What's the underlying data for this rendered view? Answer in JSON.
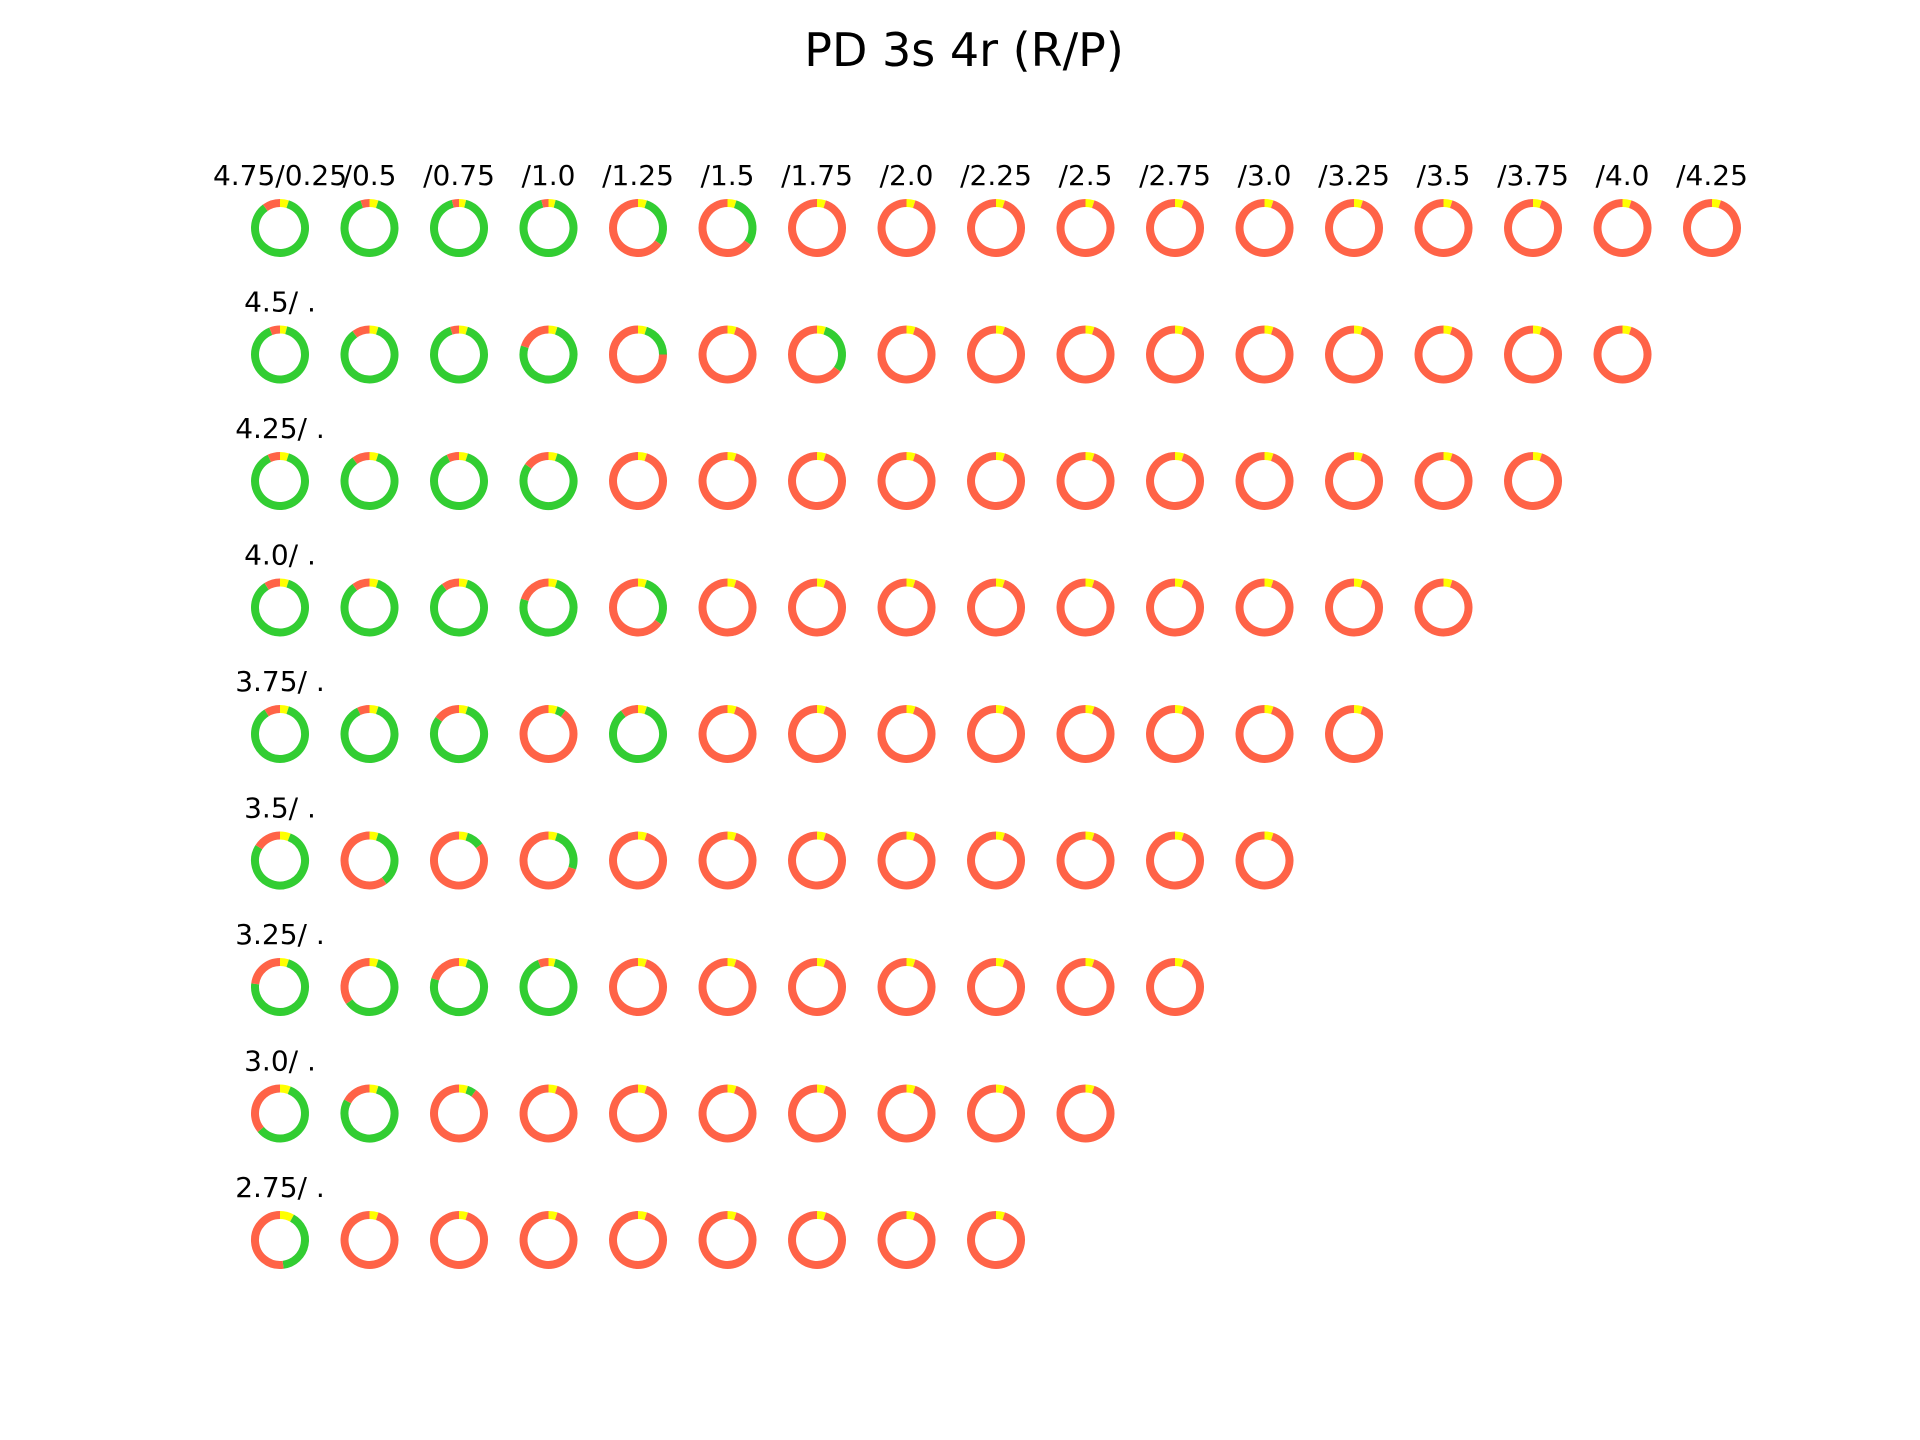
{
  "title": "PD 3s 4r (R/P)",
  "colors": {
    "green": "#32cd32",
    "red": "#ff6347",
    "yellow": "#ffff00",
    "background": "#ffffff"
  },
  "chart_data": {
    "type": "donut-grid",
    "title": "PD 3s 4r (R/P)",
    "series": [
      {
        "name": "green",
        "color": "#32cd32"
      },
      {
        "name": "yellow",
        "color": "#ffff00"
      },
      {
        "name": "red",
        "color": "#ff6347"
      }
    ],
    "rows": [
      {
        "label": "4.75/0.25",
        "cells": [
          {
            "label": "4.75/0.25",
            "green": 0.85,
            "yellow": 0.05,
            "red": 0.1
          },
          {
            "label": "/0.5",
            "green": 0.9,
            "yellow": 0.05,
            "red": 0.05
          },
          {
            "label": "/0.75",
            "green": 0.92,
            "yellow": 0.04,
            "red": 0.04
          },
          {
            "label": "/1.0",
            "green": 0.92,
            "yellow": 0.04,
            "red": 0.04
          },
          {
            "label": "/1.25",
            "green": 0.3,
            "yellow": 0.05,
            "red": 0.65
          },
          {
            "label": "/1.5",
            "green": 0.3,
            "yellow": 0.05,
            "red": 0.65
          },
          {
            "label": "/1.75",
            "green": 0.0,
            "yellow": 0.05,
            "red": 0.95
          },
          {
            "label": "/2.0",
            "green": 0.0,
            "yellow": 0.05,
            "red": 0.95
          },
          {
            "label": "/2.25",
            "green": 0.0,
            "yellow": 0.05,
            "red": 0.95
          },
          {
            "label": "/2.5",
            "green": 0.0,
            "yellow": 0.05,
            "red": 0.95
          },
          {
            "label": "/2.75",
            "green": 0.0,
            "yellow": 0.05,
            "red": 0.95
          },
          {
            "label": "/3.0",
            "green": 0.0,
            "yellow": 0.05,
            "red": 0.95
          },
          {
            "label": "/3.25",
            "green": 0.0,
            "yellow": 0.05,
            "red": 0.95
          },
          {
            "label": "/3.5",
            "green": 0.0,
            "yellow": 0.05,
            "red": 0.95
          },
          {
            "label": "/3.75",
            "green": 0.0,
            "yellow": 0.05,
            "red": 0.95
          },
          {
            "label": "/4.0",
            "green": 0.0,
            "yellow": 0.05,
            "red": 0.95
          },
          {
            "label": "/4.25",
            "green": 0.0,
            "yellow": 0.05,
            "red": 0.95
          }
        ]
      },
      {
        "label": "4.5/ .",
        "cells": [
          {
            "green": 0.9,
            "yellow": 0.04,
            "red": 0.06
          },
          {
            "green": 0.85,
            "yellow": 0.05,
            "red": 0.1
          },
          {
            "green": 0.9,
            "yellow": 0.05,
            "red": 0.05
          },
          {
            "green": 0.75,
            "yellow": 0.05,
            "red": 0.2
          },
          {
            "green": 0.2,
            "yellow": 0.05,
            "red": 0.75
          },
          {
            "green": 0.0,
            "yellow": 0.05,
            "red": 0.95
          },
          {
            "green": 0.3,
            "yellow": 0.05,
            "red": 0.65
          },
          {
            "green": 0.0,
            "yellow": 0.05,
            "red": 0.95
          },
          {
            "green": 0.0,
            "yellow": 0.05,
            "red": 0.95
          },
          {
            "green": 0.0,
            "yellow": 0.05,
            "red": 0.95
          },
          {
            "green": 0.0,
            "yellow": 0.05,
            "red": 0.95
          },
          {
            "green": 0.0,
            "yellow": 0.05,
            "red": 0.95
          },
          {
            "green": 0.0,
            "yellow": 0.05,
            "red": 0.95
          },
          {
            "green": 0.0,
            "yellow": 0.05,
            "red": 0.95
          },
          {
            "green": 0.0,
            "yellow": 0.05,
            "red": 0.95
          },
          {
            "green": 0.0,
            "yellow": 0.05,
            "red": 0.95
          }
        ]
      },
      {
        "label": "4.25/ .",
        "cells": [
          {
            "green": 0.88,
            "yellow": 0.05,
            "red": 0.07
          },
          {
            "green": 0.85,
            "yellow": 0.05,
            "red": 0.1
          },
          {
            "green": 0.88,
            "yellow": 0.05,
            "red": 0.07
          },
          {
            "green": 0.8,
            "yellow": 0.05,
            "red": 0.15
          },
          {
            "green": 0.0,
            "yellow": 0.05,
            "red": 0.95
          },
          {
            "green": 0.0,
            "yellow": 0.05,
            "red": 0.95
          },
          {
            "green": 0.0,
            "yellow": 0.05,
            "red": 0.95
          },
          {
            "green": 0.0,
            "yellow": 0.05,
            "red": 0.95
          },
          {
            "green": 0.0,
            "yellow": 0.05,
            "red": 0.95
          },
          {
            "green": 0.0,
            "yellow": 0.05,
            "red": 0.95
          },
          {
            "green": 0.0,
            "yellow": 0.05,
            "red": 0.95
          },
          {
            "green": 0.0,
            "yellow": 0.05,
            "red": 0.95
          },
          {
            "green": 0.0,
            "yellow": 0.05,
            "red": 0.95
          },
          {
            "green": 0.0,
            "yellow": 0.05,
            "red": 0.95
          },
          {
            "green": 0.0,
            "yellow": 0.05,
            "red": 0.95
          }
        ]
      },
      {
        "label": "4.0/ .",
        "cells": [
          {
            "green": 0.86,
            "yellow": 0.05,
            "red": 0.09
          },
          {
            "green": 0.85,
            "yellow": 0.05,
            "red": 0.1
          },
          {
            "green": 0.85,
            "yellow": 0.05,
            "red": 0.1
          },
          {
            "green": 0.75,
            "yellow": 0.05,
            "red": 0.2
          },
          {
            "green": 0.3,
            "yellow": 0.05,
            "red": 0.65
          },
          {
            "green": 0.0,
            "yellow": 0.05,
            "red": 0.95
          },
          {
            "green": 0.0,
            "yellow": 0.05,
            "red": 0.95
          },
          {
            "green": 0.0,
            "yellow": 0.05,
            "red": 0.95
          },
          {
            "green": 0.0,
            "yellow": 0.05,
            "red": 0.95
          },
          {
            "green": 0.0,
            "yellow": 0.05,
            "red": 0.95
          },
          {
            "green": 0.0,
            "yellow": 0.05,
            "red": 0.95
          },
          {
            "green": 0.0,
            "yellow": 0.05,
            "red": 0.95
          },
          {
            "green": 0.0,
            "yellow": 0.05,
            "red": 0.95
          },
          {
            "green": 0.0,
            "yellow": 0.05,
            "red": 0.95
          }
        ]
      },
      {
        "label": "3.75/ .",
        "cells": [
          {
            "green": 0.86,
            "yellow": 0.05,
            "red": 0.09
          },
          {
            "green": 0.88,
            "yellow": 0.05,
            "red": 0.07
          },
          {
            "green": 0.8,
            "yellow": 0.05,
            "red": 0.15
          },
          {
            "green": 0.05,
            "yellow": 0.05,
            "red": 0.9
          },
          {
            "green": 0.85,
            "yellow": 0.05,
            "red": 0.1
          },
          {
            "green": 0.0,
            "yellow": 0.05,
            "red": 0.95
          },
          {
            "green": 0.0,
            "yellow": 0.05,
            "red": 0.95
          },
          {
            "green": 0.0,
            "yellow": 0.05,
            "red": 0.95
          },
          {
            "green": 0.0,
            "yellow": 0.05,
            "red": 0.95
          },
          {
            "green": 0.0,
            "yellow": 0.05,
            "red": 0.95
          },
          {
            "green": 0.0,
            "yellow": 0.05,
            "red": 0.95
          },
          {
            "green": 0.0,
            "yellow": 0.05,
            "red": 0.95
          },
          {
            "green": 0.0,
            "yellow": 0.05,
            "red": 0.95
          }
        ]
      },
      {
        "label": "3.5/ .",
        "cells": [
          {
            "green": 0.78,
            "yellow": 0.06,
            "red": 0.16
          },
          {
            "green": 0.35,
            "yellow": 0.05,
            "red": 0.6
          },
          {
            "green": 0.1,
            "yellow": 0.05,
            "red": 0.85
          },
          {
            "green": 0.25,
            "yellow": 0.05,
            "red": 0.7
          },
          {
            "green": 0.0,
            "yellow": 0.05,
            "red": 0.95
          },
          {
            "green": 0.0,
            "yellow": 0.05,
            "red": 0.95
          },
          {
            "green": 0.0,
            "yellow": 0.05,
            "red": 0.95
          },
          {
            "green": 0.0,
            "yellow": 0.05,
            "red": 0.95
          },
          {
            "green": 0.0,
            "yellow": 0.05,
            "red": 0.95
          },
          {
            "green": 0.0,
            "yellow": 0.05,
            "red": 0.95
          },
          {
            "green": 0.0,
            "yellow": 0.05,
            "red": 0.95
          },
          {
            "green": 0.0,
            "yellow": 0.05,
            "red": 0.95
          }
        ]
      },
      {
        "label": "3.25/ .",
        "cells": [
          {
            "green": 0.72,
            "yellow": 0.05,
            "red": 0.23
          },
          {
            "green": 0.6,
            "yellow": 0.05,
            "red": 0.35
          },
          {
            "green": 0.75,
            "yellow": 0.05,
            "red": 0.2
          },
          {
            "green": 0.9,
            "yellow": 0.04,
            "red": 0.06
          },
          {
            "green": 0.0,
            "yellow": 0.05,
            "red": 0.95
          },
          {
            "green": 0.0,
            "yellow": 0.05,
            "red": 0.95
          },
          {
            "green": 0.0,
            "yellow": 0.05,
            "red": 0.95
          },
          {
            "green": 0.0,
            "yellow": 0.05,
            "red": 0.95
          },
          {
            "green": 0.0,
            "yellow": 0.05,
            "red": 0.95
          },
          {
            "green": 0.0,
            "yellow": 0.05,
            "red": 0.95
          },
          {
            "green": 0.0,
            "yellow": 0.05,
            "red": 0.95
          }
        ]
      },
      {
        "label": "3.0/ .",
        "cells": [
          {
            "green": 0.58,
            "yellow": 0.06,
            "red": 0.36
          },
          {
            "green": 0.78,
            "yellow": 0.05,
            "red": 0.17
          },
          {
            "green": 0.05,
            "yellow": 0.05,
            "red": 0.9
          },
          {
            "green": 0.0,
            "yellow": 0.05,
            "red": 0.95
          },
          {
            "green": 0.0,
            "yellow": 0.05,
            "red": 0.95
          },
          {
            "green": 0.0,
            "yellow": 0.05,
            "red": 0.95
          },
          {
            "green": 0.0,
            "yellow": 0.05,
            "red": 0.95
          },
          {
            "green": 0.0,
            "yellow": 0.05,
            "red": 0.95
          },
          {
            "green": 0.0,
            "yellow": 0.05,
            "red": 0.95
          },
          {
            "green": 0.0,
            "yellow": 0.05,
            "red": 0.95
          }
        ]
      },
      {
        "label": "2.75/ .",
        "cells": [
          {
            "green": 0.4,
            "yellow": 0.08,
            "red": 0.52
          },
          {
            "green": 0.0,
            "yellow": 0.05,
            "red": 0.95
          },
          {
            "green": 0.0,
            "yellow": 0.05,
            "red": 0.95
          },
          {
            "green": 0.0,
            "yellow": 0.05,
            "red": 0.95
          },
          {
            "green": 0.0,
            "yellow": 0.05,
            "red": 0.95
          },
          {
            "green": 0.0,
            "yellow": 0.05,
            "red": 0.95
          },
          {
            "green": 0.0,
            "yellow": 0.05,
            "red": 0.95
          },
          {
            "green": 0.0,
            "yellow": 0.05,
            "red": 0.95
          },
          {
            "green": 0.0,
            "yellow": 0.05,
            "red": 0.95
          }
        ]
      }
    ]
  }
}
